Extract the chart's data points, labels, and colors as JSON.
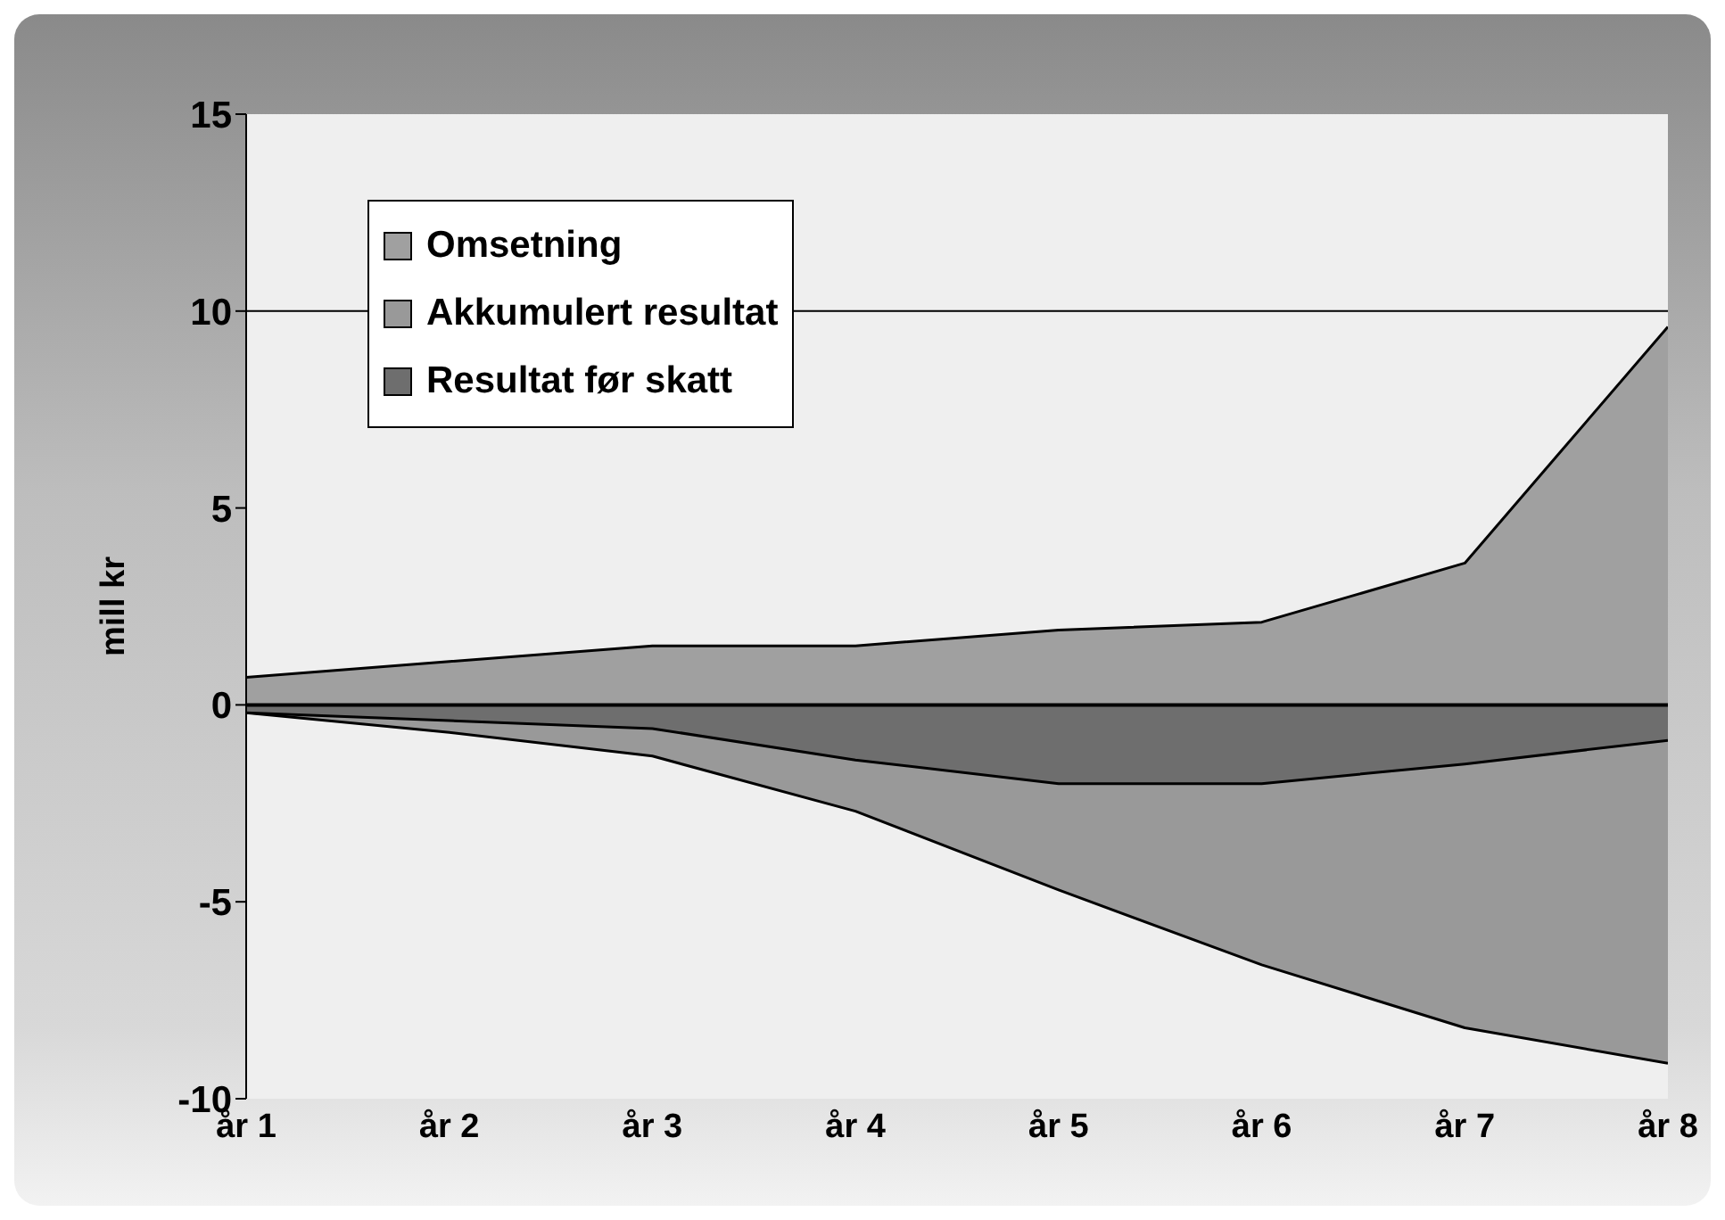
{
  "chart_data": {
    "type": "area",
    "ylabel": "mill kr",
    "categories": [
      "år 1",
      "år 2",
      "år 3",
      "år 4",
      "år 5",
      "år 6",
      "år 7",
      "år 8"
    ],
    "series": [
      {
        "name": "Omsetning",
        "color": "#a0a0a0",
        "values": [
          0.7,
          1.1,
          1.5,
          1.5,
          1.9,
          2.1,
          3.6,
          9.6
        ]
      },
      {
        "name": "Akkumulert resultat",
        "color": "#999999",
        "values": [
          -0.2,
          -0.7,
          -1.3,
          -2.7,
          -4.7,
          -6.6,
          -8.2,
          -9.1
        ]
      },
      {
        "name": "Resultat før skatt",
        "color": "#6e6e6e",
        "values": [
          -0.2,
          -0.4,
          -0.6,
          -1.4,
          -2.0,
          -2.0,
          -1.5,
          -0.9
        ]
      }
    ],
    "ylim": [
      -10,
      15
    ],
    "yticks": [
      -10,
      -5,
      0,
      5,
      10,
      15
    ],
    "legend": "top left",
    "ref_lines": [
      {
        "axis": "y",
        "value": 10,
        "color": "#000000"
      },
      {
        "axis": "y",
        "value": 0,
        "color": "#000000"
      }
    ]
  }
}
